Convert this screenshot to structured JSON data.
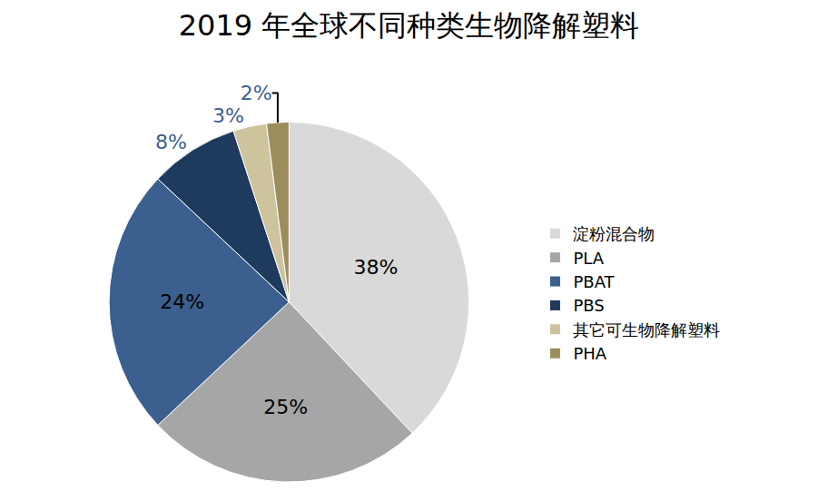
{
  "chart_data": {
    "type": "pie",
    "title": "2019 年全球不同种类生物降解塑料",
    "categories": [
      "淀粉混合物",
      "PLA",
      "PBAT",
      "PBS",
      "其它可生物降解塑料",
      "PHA"
    ],
    "values": [
      38,
      25,
      24,
      8,
      3,
      2
    ],
    "value_labels": [
      "38%",
      "25%",
      "24%",
      "8%",
      "3%",
      "2%"
    ],
    "colors": [
      "#d9d9d9",
      "#a6a6a6",
      "#3b5f8e",
      "#1e3a5c",
      "#cdc39c",
      "#9c8d5c"
    ],
    "data_labels": true,
    "legend": "right"
  }
}
